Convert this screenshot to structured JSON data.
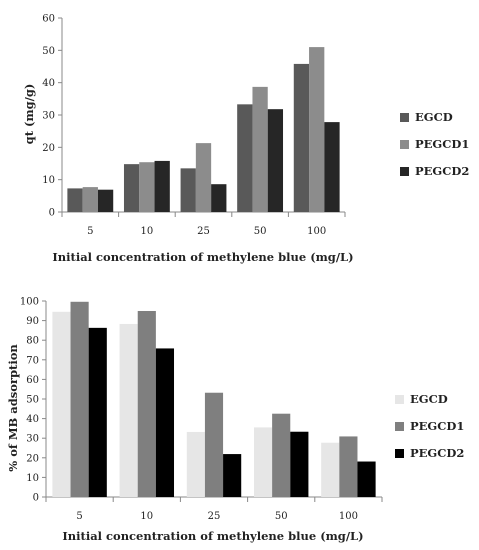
{
  "chart_data": [
    {
      "type": "bar",
      "categories": [
        "5",
        "10",
        "25",
        "50",
        "100"
      ],
      "series": [
        {
          "name": "EGCD",
          "color": "#595959",
          "values": [
            7.3,
            14.8,
            13.5,
            33.3,
            45.8
          ]
        },
        {
          "name": "PEGCD1",
          "color": "#8c8c8c",
          "values": [
            7.7,
            15.4,
            21.3,
            38.7,
            51.0
          ]
        },
        {
          "name": "PEGCD2",
          "color": "#262626",
          "values": [
            6.9,
            15.8,
            8.6,
            31.8,
            27.8
          ]
        }
      ],
      "xlabel": "Initial concentration of methylene blue (mg/L)",
      "ylabel": "qt (mg/g)",
      "ylim": [
        0,
        60
      ],
      "yticks": [
        "0",
        "10",
        "20",
        "30",
        "40",
        "50",
        "60"
      ],
      "grid": false,
      "legend": "right"
    },
    {
      "type": "bar",
      "categories": [
        "5",
        "10",
        "25",
        "50",
        "100"
      ],
      "series": [
        {
          "name": "EGCD",
          "color": "#e6e6e6",
          "values": [
            94.5,
            88.3,
            33.2,
            35.5,
            27.7
          ]
        },
        {
          "name": "PEGCD1",
          "color": "#7f7f7f",
          "values": [
            99.6,
            94.9,
            53.2,
            42.5,
            30.9
          ]
        },
        {
          "name": "PEGCD2",
          "color": "#000000",
          "values": [
            86.3,
            75.8,
            21.9,
            33.3,
            18.1
          ]
        }
      ],
      "xlabel": "Initial concentration of methylene blue (mg/L)",
      "ylabel": "% of MB adsorption",
      "ylim": [
        0,
        100
      ],
      "yticks": [
        "0",
        "10",
        "20",
        "30",
        "40",
        "50",
        "60",
        "70",
        "80",
        "90",
        "100"
      ],
      "grid": false,
      "legend": "right"
    }
  ]
}
